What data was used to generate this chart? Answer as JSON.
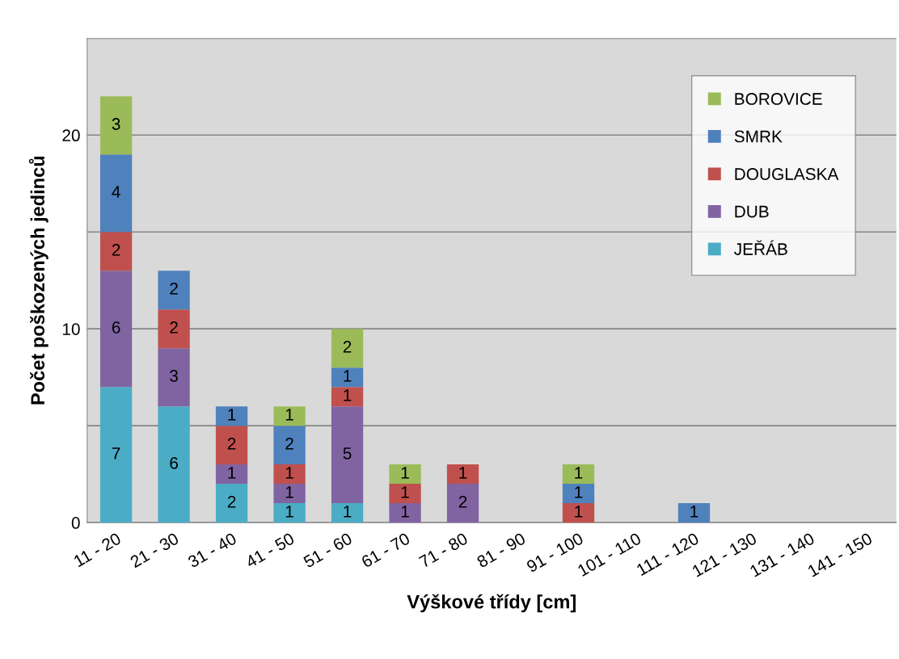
{
  "chart_data": {
    "type": "bar",
    "stacked": true,
    "xlabel": "Výškové třídy [cm]",
    "ylabel": "Počet poškozených jedinců",
    "categories": [
      "11 - 20",
      "21 - 30",
      "31 - 40",
      "41 - 50",
      "51 - 60",
      "61 - 70",
      "71 - 80",
      "81 - 90",
      "91 - 100",
      "101 - 110",
      "111 - 120",
      "121 - 130",
      "131 - 140",
      "141 - 150"
    ],
    "series": [
      {
        "name": "JEŘÁB",
        "color": "#4bacc6",
        "values": [
          7,
          6,
          2,
          1,
          1,
          null,
          null,
          null,
          null,
          null,
          null,
          null,
          null,
          null
        ]
      },
      {
        "name": "DUB",
        "color": "#8064a2",
        "values": [
          6,
          3,
          1,
          1,
          5,
          1,
          2,
          null,
          null,
          null,
          null,
          null,
          null,
          null
        ]
      },
      {
        "name": "DOUGLASKA",
        "color": "#c0504d",
        "values": [
          2,
          2,
          2,
          1,
          1,
          1,
          1,
          null,
          1,
          null,
          null,
          null,
          null,
          null
        ]
      },
      {
        "name": "SMRK",
        "color": "#4f81bd",
        "values": [
          4,
          2,
          1,
          2,
          1,
          null,
          null,
          null,
          1,
          null,
          1,
          null,
          null,
          null
        ]
      },
      {
        "name": "BOROVICE",
        "color": "#9bbb59",
        "values": [
          3,
          null,
          null,
          1,
          2,
          1,
          null,
          null,
          1,
          null,
          null,
          null,
          null,
          null
        ]
      }
    ],
    "ylim": [
      0,
      25
    ],
    "yticks": [
      0,
      {
        "value": 5,
        "label": null
      },
      10,
      {
        "value": 15,
        "label": null
      },
      20,
      {
        "value": 25,
        "label": null
      }
    ],
    "grid": "y",
    "legend": "top right",
    "data_labels": true
  }
}
